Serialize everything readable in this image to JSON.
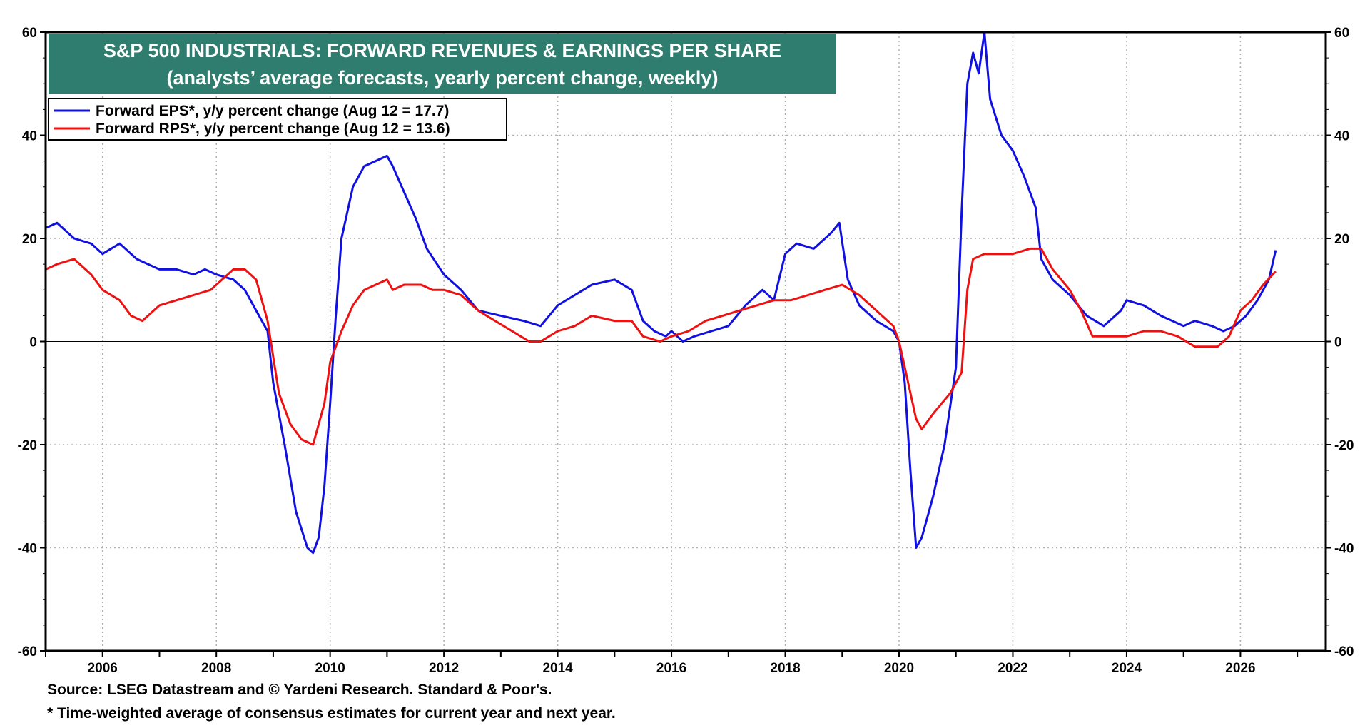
{
  "chart_data": {
    "type": "line",
    "title": "S&P 500 INDUSTRIALS: FORWARD REVENUES & EARNINGS PER SHARE",
    "subtitle": "(analysts’ average forecasts, yearly percent change, weekly)",
    "xlabel": "",
    "ylabel": "",
    "xlim": [
      2005.0,
      2027.5
    ],
    "ylim": [
      -60,
      60
    ],
    "y_ticks": [
      "60",
      "40",
      "20",
      "0",
      "-20",
      "-40",
      "-60"
    ],
    "x_ticks": [
      "2006",
      "2008",
      "2010",
      "2012",
      "2014",
      "2016",
      "2018",
      "2020",
      "2022",
      "2024",
      "2026"
    ],
    "grid": true,
    "legend_position": "top-left",
    "series": [
      {
        "name": "Forward EPS*, y/y percent change (Aug 12 = 17.7)",
        "color": "#1010e0",
        "x": [
          2005.0,
          2005.2,
          2005.5,
          2005.8,
          2006.0,
          2006.3,
          2006.6,
          2006.8,
          2007.0,
          2007.3,
          2007.6,
          2007.8,
          2008.0,
          2008.3,
          2008.5,
          2008.7,
          2008.9,
          2009.0,
          2009.2,
          2009.4,
          2009.6,
          2009.7,
          2009.8,
          2009.9,
          2010.0,
          2010.1,
          2010.2,
          2010.4,
          2010.6,
          2010.8,
          2011.0,
          2011.1,
          2011.3,
          2011.5,
          2011.7,
          2012.0,
          2012.3,
          2012.6,
          2013.0,
          2013.4,
          2013.7,
          2014.0,
          2014.3,
          2014.6,
          2015.0,
          2015.3,
          2015.5,
          2015.7,
          2015.9,
          2016.0,
          2016.2,
          2016.4,
          2016.7,
          2017.0,
          2017.3,
          2017.6,
          2017.8,
          2018.0,
          2018.2,
          2018.5,
          2018.8,
          2018.95,
          2019.1,
          2019.3,
          2019.6,
          2019.9,
          2020.0,
          2020.1,
          2020.2,
          2020.3,
          2020.4,
          2020.6,
          2020.8,
          2021.0,
          2021.1,
          2021.2,
          2021.3,
          2021.4,
          2021.5,
          2021.6,
          2021.8,
          2022.0,
          2022.2,
          2022.4,
          2022.5,
          2022.7,
          2023.0,
          2023.3,
          2023.6,
          2023.9,
          2024.0,
          2024.3,
          2024.6,
          2025.0,
          2025.2,
          2025.5,
          2025.7,
          2025.9,
          2026.1,
          2026.3,
          2026.5,
          2026.62
        ],
        "values": [
          22,
          23,
          20,
          19,
          17,
          19,
          16,
          15,
          14,
          14,
          13,
          14,
          13,
          12,
          10,
          6,
          2,
          -8,
          -20,
          -33,
          -40,
          -41,
          -38,
          -28,
          -12,
          5,
          20,
          30,
          34,
          35,
          36,
          34,
          29,
          24,
          18,
          13,
          10,
          6,
          5,
          4,
          3,
          7,
          9,
          11,
          12,
          10,
          4,
          2,
          1,
          2,
          0,
          1,
          2,
          3,
          7,
          10,
          8,
          17,
          19,
          18,
          21,
          23,
          12,
          7,
          4,
          2,
          0,
          -8,
          -25,
          -40,
          -38,
          -30,
          -20,
          -5,
          25,
          50,
          56,
          52,
          60,
          47,
          40,
          37,
          32,
          26,
          16,
          12,
          9,
          5,
          3,
          6,
          8,
          7,
          5,
          3,
          4,
          3,
          2,
          3,
          5,
          8,
          12,
          17.7
        ]
      },
      {
        "name": "Forward RPS*, y/y percent change (Aug 12 = 13.6)",
        "color": "#ee1111",
        "x": [
          2005.0,
          2005.2,
          2005.5,
          2005.8,
          2006.0,
          2006.3,
          2006.5,
          2006.7,
          2007.0,
          2007.3,
          2007.6,
          2007.9,
          2008.1,
          2008.3,
          2008.5,
          2008.7,
          2008.9,
          2009.1,
          2009.3,
          2009.5,
          2009.7,
          2009.9,
          2010.0,
          2010.2,
          2010.4,
          2010.6,
          2010.8,
          2011.0,
          2011.1,
          2011.3,
          2011.6,
          2011.8,
          2012.0,
          2012.3,
          2012.6,
          2012.9,
          2013.2,
          2013.5,
          2013.7,
          2014.0,
          2014.3,
          2014.6,
          2015.0,
          2015.3,
          2015.5,
          2015.8,
          2016.0,
          2016.3,
          2016.6,
          2016.9,
          2017.2,
          2017.5,
          2017.8,
          2018.1,
          2018.4,
          2018.7,
          2019.0,
          2019.3,
          2019.6,
          2019.9,
          2020.0,
          2020.1,
          2020.3,
          2020.4,
          2020.6,
          2020.9,
          2021.1,
          2021.2,
          2021.3,
          2021.5,
          2021.8,
          2022.0,
          2022.3,
          2022.5,
          2022.7,
          2023.0,
          2023.2,
          2023.4,
          2023.7,
          2024.0,
          2024.3,
          2024.6,
          2024.9,
          2025.2,
          2025.4,
          2025.6,
          2025.8,
          2026.0,
          2026.2,
          2026.4,
          2026.62
        ],
        "values": [
          14,
          15,
          16,
          13,
          10,
          8,
          5,
          4,
          7,
          8,
          9,
          10,
          12,
          14,
          14,
          12,
          4,
          -10,
          -16,
          -19,
          -20,
          -12,
          -4,
          2,
          7,
          10,
          11,
          12,
          10,
          11,
          11,
          10,
          10,
          9,
          6,
          4,
          2,
          0,
          0,
          2,
          3,
          5,
          4,
          4,
          1,
          0,
          1,
          2,
          4,
          5,
          6,
          7,
          8,
          8,
          9,
          10,
          11,
          9,
          6,
          3,
          0,
          -5,
          -15,
          -17,
          -14,
          -10,
          -6,
          10,
          16,
          17,
          17,
          17,
          18,
          18,
          14,
          10,
          6,
          1,
          1,
          1,
          2,
          2,
          1,
          -1,
          -1,
          -1,
          1,
          6,
          8,
          11,
          13.6
        ]
      }
    ]
  },
  "footer": {
    "source": "Source: LSEG Datastream and © Yardeni Research. Standard & Poor's.",
    "note": "* Time-weighted average of consensus estimates for current year and next year."
  }
}
